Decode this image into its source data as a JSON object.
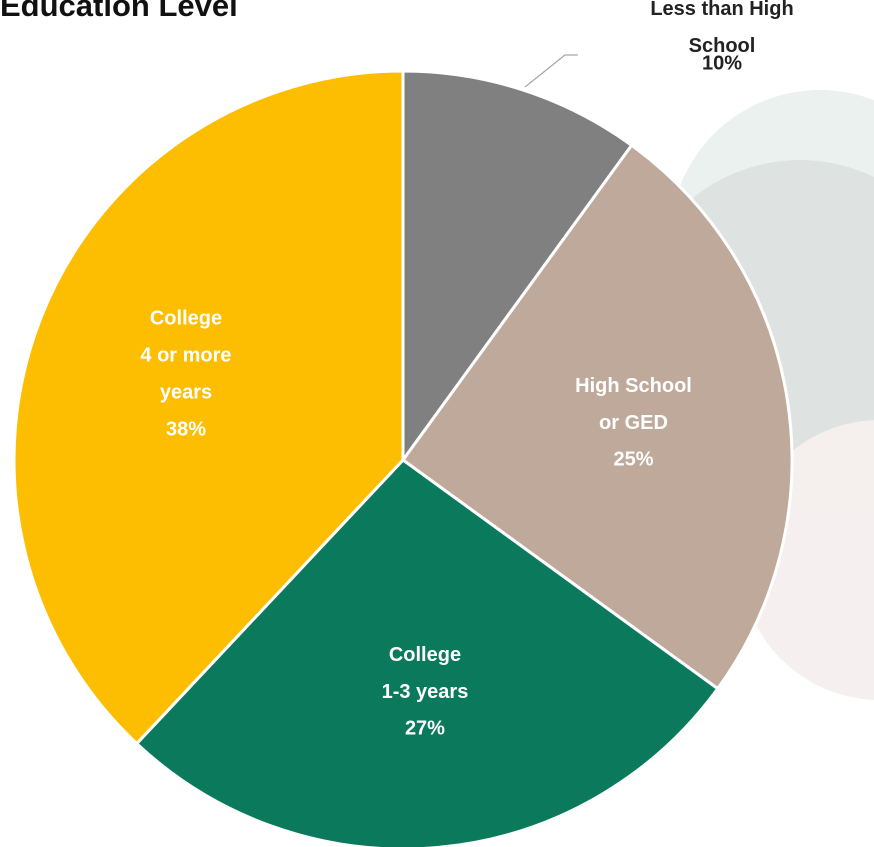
{
  "chart_data": {
    "type": "pie",
    "title": "Education Level",
    "categories": [
      "Less than High School",
      "High School\nor GED",
      "College\n1-3 years",
      "College\n4 or more\nyears"
    ],
    "values": [
      10,
      25,
      27,
      38
    ],
    "value_labels": [
      "10%",
      "25%",
      "27%",
      "38%"
    ],
    "colors": [
      "#808080",
      "#bfa99a",
      "#0b7a5c",
      "#fdbd00"
    ]
  }
}
